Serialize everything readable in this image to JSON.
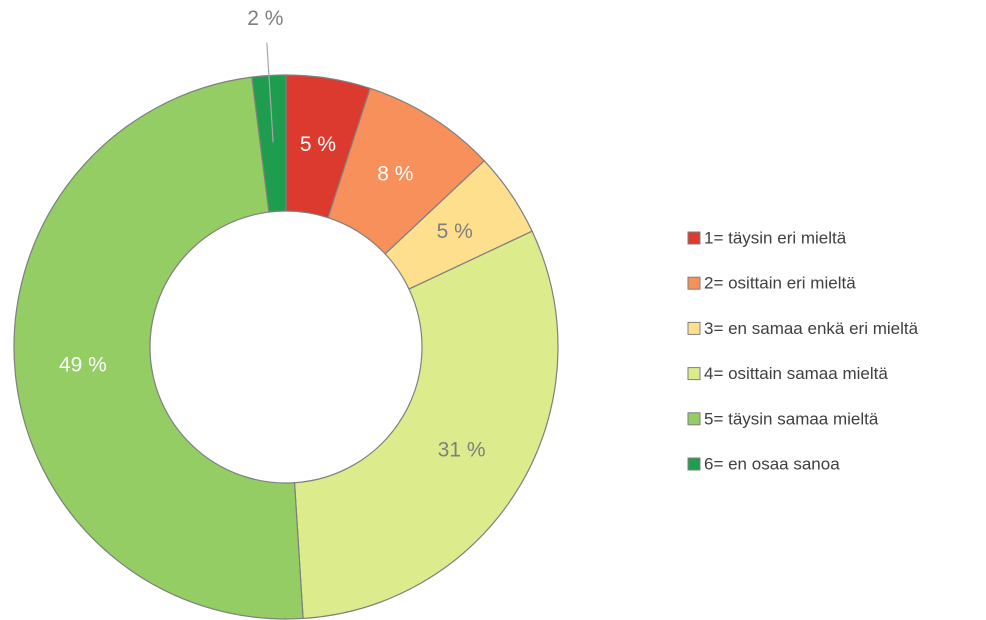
{
  "chart_data": {
    "type": "donut",
    "categories": [
      "1= täysin eri mieltä",
      "2= osittain eri mieltä",
      "3= en samaa enkä eri mieltä",
      "4= osittain samaa mieltä",
      "5= täysin samaa mieltä",
      "6= en osaa sanoa"
    ],
    "values": [
      5,
      8,
      5,
      31,
      49,
      2
    ],
    "value_labels": [
      "5 %",
      "8 %",
      "5 %",
      "31 %",
      "49 %",
      "2 %"
    ],
    "colors": [
      "#dc3a2e",
      "#f7905a",
      "#fddf8e",
      "#dcec8c",
      "#93cd63",
      "#1f9d4e"
    ],
    "legend": "right"
  }
}
